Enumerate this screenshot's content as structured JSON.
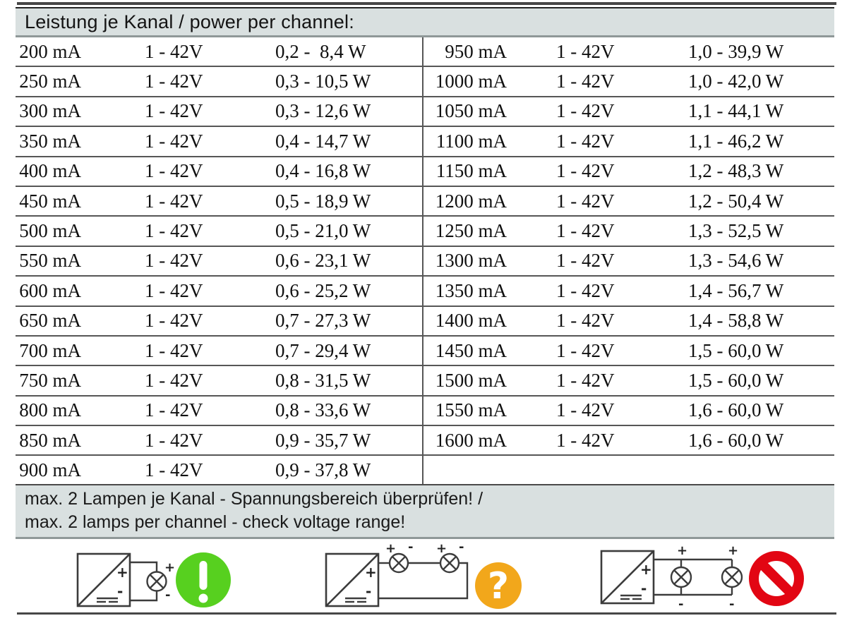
{
  "header": {
    "title": "Leistung je Kanal / power per channel:"
  },
  "table": {
    "rows": [
      {
        "left": {
          "current": "200 mA",
          "voltage": "1 - 42V",
          "power": "0,2 -  8,4 W"
        },
        "right": {
          "current": "950 mA",
          "voltage": "1 - 42V",
          "power": "1,0 - 39,9 W"
        }
      },
      {
        "left": {
          "current": "250 mA",
          "voltage": "1 - 42V",
          "power": "0,3 - 10,5 W"
        },
        "right": {
          "current": "1000 mA",
          "voltage": "1 - 42V",
          "power": "1,0 - 42,0 W"
        }
      },
      {
        "left": {
          "current": "300 mA",
          "voltage": "1 - 42V",
          "power": "0,3 - 12,6 W"
        },
        "right": {
          "current": "1050 mA",
          "voltage": "1 - 42V",
          "power": "1,1 - 44,1 W"
        }
      },
      {
        "left": {
          "current": "350 mA",
          "voltage": "1 - 42V",
          "power": "0,4 - 14,7 W"
        },
        "right": {
          "current": "1100 mA",
          "voltage": "1 - 42V",
          "power": "1,1 - 46,2 W"
        }
      },
      {
        "left": {
          "current": "400 mA",
          "voltage": "1 - 42V",
          "power": "0,4 - 16,8 W"
        },
        "right": {
          "current": "1150 mA",
          "voltage": "1 - 42V",
          "power": "1,2 - 48,3 W"
        }
      },
      {
        "left": {
          "current": "450 mA",
          "voltage": "1 - 42V",
          "power": "0,5 - 18,9 W"
        },
        "right": {
          "current": "1200 mA",
          "voltage": "1 - 42V",
          "power": "1,2 - 50,4 W"
        }
      },
      {
        "left": {
          "current": "500 mA",
          "voltage": "1 - 42V",
          "power": "0,5 - 21,0 W"
        },
        "right": {
          "current": "1250 mA",
          "voltage": "1 - 42V",
          "power": "1,3 - 52,5 W"
        }
      },
      {
        "left": {
          "current": "550 mA",
          "voltage": "1 - 42V",
          "power": "0,6 - 23,1 W"
        },
        "right": {
          "current": "1300 mA",
          "voltage": "1 - 42V",
          "power": "1,3 - 54,6 W"
        }
      },
      {
        "left": {
          "current": "600 mA",
          "voltage": "1 - 42V",
          "power": "0,6 - 25,2 W"
        },
        "right": {
          "current": "1350 mA",
          "voltage": "1 - 42V",
          "power": "1,4 - 56,7 W"
        }
      },
      {
        "left": {
          "current": "650 mA",
          "voltage": "1 - 42V",
          "power": "0,7 - 27,3 W"
        },
        "right": {
          "current": "1400 mA",
          "voltage": "1 - 42V",
          "power": "1,4 - 58,8 W"
        }
      },
      {
        "left": {
          "current": "700 mA",
          "voltage": "1 - 42V",
          "power": "0,7 - 29,4 W"
        },
        "right": {
          "current": "1450 mA",
          "voltage": "1 - 42V",
          "power": "1,5 - 60,0 W"
        }
      },
      {
        "left": {
          "current": "750 mA",
          "voltage": "1 - 42V",
          "power": "0,8 - 31,5 W"
        },
        "right": {
          "current": "1500 mA",
          "voltage": "1 - 42V",
          "power": "1,5 - 60,0 W"
        }
      },
      {
        "left": {
          "current": "800 mA",
          "voltage": "1 - 42V",
          "power": "0,8 - 33,6 W"
        },
        "right": {
          "current": "1550 mA",
          "voltage": "1 - 42V",
          "power": "1,6 - 60,0 W"
        }
      },
      {
        "left": {
          "current": "850 mA",
          "voltage": "1 - 42V",
          "power": "0,9 - 35,7 W"
        },
        "right": {
          "current": "1600 mA",
          "voltage": "1 - 42V",
          "power": "1,6 - 60,0 W"
        }
      },
      {
        "left": {
          "current": "900 mA",
          "voltage": "1 - 42V",
          "power": "0,9 - 37,8 W"
        },
        "right": null
      }
    ]
  },
  "note": {
    "line1": "max. 2 Lampen je Kanal - Spannungsbereich überprüfen! /",
    "line2": "max. 2 lamps per channel - check voltage range!"
  },
  "diagrams": {
    "symbols": {
      "plus": "+",
      "minus": "-",
      "exclamation": "!",
      "question": "?"
    },
    "colors": {
      "ok_green": "#57d01f",
      "caution_orange": "#f2a71b",
      "prohibited_red": "#e20613"
    }
  }
}
